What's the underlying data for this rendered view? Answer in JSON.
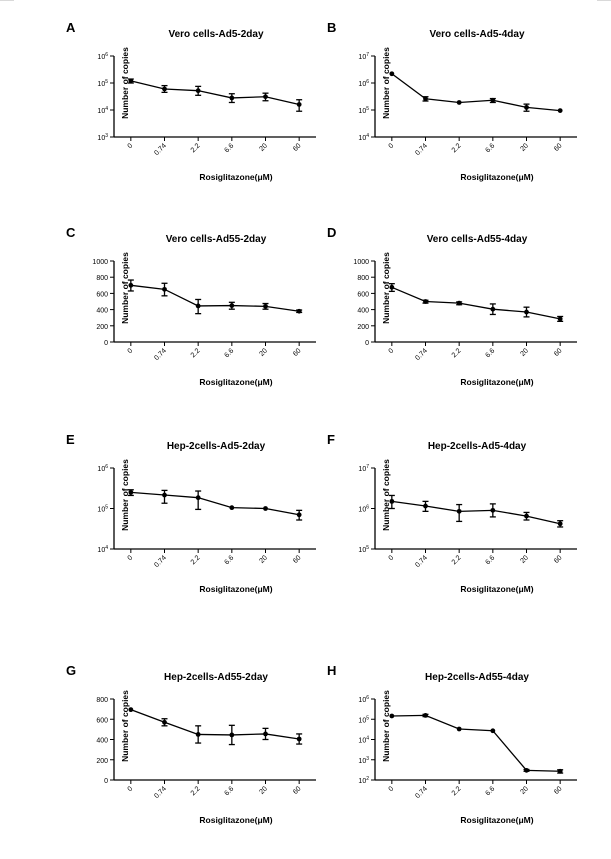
{
  "chart_data": [
    {
      "panel": "A",
      "type": "line",
      "title": "Vero cells-Ad5-2day",
      "xlabel": "Rosiglitazone(μM)",
      "ylabel": "Number of copies",
      "yscale": "log",
      "ylim": [
        1000,
        1000000
      ],
      "yticks": [
        {
          "v": 1000,
          "base": "10",
          "exp": "3"
        },
        {
          "v": 10000,
          "base": "10",
          "exp": "4"
        },
        {
          "v": 100000,
          "base": "10",
          "exp": "5"
        },
        {
          "v": 1000000,
          "base": "10",
          "exp": "6"
        }
      ],
      "categories": [
        "0",
        "0.74",
        "2.2",
        "6.6",
        "20",
        "60"
      ],
      "values": [
        120000,
        60000,
        52000,
        28000,
        31000,
        16000
      ],
      "err_low": [
        100000,
        45000,
        35000,
        19000,
        22000,
        9000
      ],
      "err_high": [
        140000,
        80000,
        75000,
        40000,
        42000,
        24000
      ]
    },
    {
      "panel": "B",
      "type": "line",
      "title": "Vero cells-Ad5-4day",
      "xlabel": "Rosiglitazone(μM)",
      "ylabel": "Number of copies",
      "yscale": "log",
      "ylim": [
        10000,
        10000000
      ],
      "yticks": [
        {
          "v": 10000,
          "base": "10",
          "exp": "4"
        },
        {
          "v": 100000,
          "base": "10",
          "exp": "5"
        },
        {
          "v": 1000000,
          "base": "10",
          "exp": "6"
        },
        {
          "v": 10000000,
          "base": "10",
          "exp": "7"
        }
      ],
      "categories": [
        "0",
        "0.74",
        "2.2",
        "6.6",
        "20",
        "60"
      ],
      "values": [
        2200000,
        260000,
        190000,
        230000,
        125000,
        95000
      ],
      "err_low": [
        2200000,
        215000,
        190000,
        190000,
        90000,
        95000
      ],
      "err_high": [
        2200000,
        310000,
        190000,
        265000,
        165000,
        95000
      ]
    },
    {
      "panel": "C",
      "type": "line",
      "title": "Vero cells-Ad55-2day",
      "xlabel": "Rosiglitazone(μM)",
      "ylabel": "Number of copies",
      "yscale": "linear",
      "ylim": [
        0,
        1000
      ],
      "yticks": [
        {
          "v": 0,
          "t": "0"
        },
        {
          "v": 200,
          "t": "200"
        },
        {
          "v": 400,
          "t": "400"
        },
        {
          "v": 600,
          "t": "600"
        },
        {
          "v": 800,
          "t": "800"
        },
        {
          "v": 1000,
          "t": "1000"
        }
      ],
      "categories": [
        "0",
        "0.74",
        "2.2",
        "6.6",
        "20",
        "60"
      ],
      "values": [
        700,
        650,
        445,
        450,
        440,
        380
      ],
      "err_low": [
        630,
        570,
        350,
        405,
        405,
        365
      ],
      "err_high": [
        765,
        725,
        525,
        490,
        475,
        395
      ]
    },
    {
      "panel": "D",
      "type": "line",
      "title": "Vero cells-Ad55-4day",
      "xlabel": "Rosiglitazone(μM)",
      "ylabel": "Number of copies",
      "yscale": "linear",
      "ylim": [
        0,
        1000
      ],
      "yticks": [
        {
          "v": 0,
          "t": "0"
        },
        {
          "v": 200,
          "t": "200"
        },
        {
          "v": 400,
          "t": "400"
        },
        {
          "v": 600,
          "t": "600"
        },
        {
          "v": 800,
          "t": "800"
        },
        {
          "v": 1000,
          "t": "1000"
        }
      ],
      "categories": [
        "0",
        "0.74",
        "2.2",
        "6.6",
        "20",
        "60"
      ],
      "values": [
        675,
        500,
        480,
        405,
        370,
        285
      ],
      "err_low": [
        625,
        480,
        460,
        340,
        310,
        255
      ],
      "err_high": [
        720,
        515,
        495,
        470,
        430,
        315
      ]
    },
    {
      "panel": "E",
      "type": "line",
      "title": "Hep-2cells-Ad5-2day",
      "xlabel": "Rosiglitazone(μM)",
      "ylabel": "Number of copies",
      "yscale": "log",
      "ylim": [
        10000,
        1000000
      ],
      "yticks": [
        {
          "v": 10000,
          "base": "10",
          "exp": "4"
        },
        {
          "v": 100000,
          "base": "10",
          "exp": "5"
        },
        {
          "v": 1000000,
          "base": "10",
          "exp": "6"
        }
      ],
      "categories": [
        "0",
        "0.74",
        "2.2",
        "6.6",
        "20",
        "60"
      ],
      "values": [
        250000,
        215000,
        185000,
        105000,
        100000,
        70000
      ],
      "err_low": [
        210000,
        135000,
        95000,
        105000,
        100000,
        52000
      ],
      "err_high": [
        290000,
        280000,
        270000,
        105000,
        100000,
        90000
      ]
    },
    {
      "panel": "F",
      "type": "line",
      "title": "Hep-2cells-Ad5-4day",
      "xlabel": "Rosiglitazone(μM)",
      "ylabel": "Number of copies",
      "yscale": "log",
      "ylim": [
        100000,
        10000000
      ],
      "yticks": [
        {
          "v": 100000,
          "base": "10",
          "exp": "5"
        },
        {
          "v": 1000000,
          "base": "10",
          "exp": "6"
        },
        {
          "v": 10000000,
          "base": "10",
          "exp": "7"
        }
      ],
      "categories": [
        "0",
        "0.74",
        "2.2",
        "6.6",
        "20",
        "60"
      ],
      "values": [
        1500000,
        1150000,
        850000,
        900000,
        650000,
        420000
      ],
      "err_low": [
        1000000,
        850000,
        480000,
        620000,
        520000,
        350000
      ],
      "err_high": [
        2100000,
        1500000,
        1250000,
        1300000,
        800000,
        500000
      ]
    },
    {
      "panel": "G",
      "type": "line",
      "title": "Hep-2cells-Ad55-2day",
      "xlabel": "Rosiglitazone(μM)",
      "ylabel": "Number of copies",
      "yscale": "linear",
      "ylim": [
        0,
        800
      ],
      "yticks": [
        {
          "v": 0,
          "t": "0"
        },
        {
          "v": 200,
          "t": "200"
        },
        {
          "v": 400,
          "t": "400"
        },
        {
          "v": 600,
          "t": "600"
        },
        {
          "v": 800,
          "t": "800"
        }
      ],
      "categories": [
        "0",
        "0.74",
        "2.2",
        "6.6",
        "20",
        "60"
      ],
      "values": [
        695,
        570,
        450,
        445,
        455,
        405
      ],
      "err_low": [
        695,
        535,
        365,
        350,
        400,
        355
      ],
      "err_high": [
        695,
        605,
        535,
        540,
        510,
        455
      ]
    },
    {
      "panel": "H",
      "type": "line",
      "title": "Hep-2cells-Ad55-4day",
      "xlabel": "Rosiglitazone(μM)",
      "ylabel": "Number of copies",
      "yscale": "log",
      "ylim": [
        100,
        1000000
      ],
      "yticks": [
        {
          "v": 100,
          "base": "10",
          "exp": "2"
        },
        {
          "v": 1000,
          "base": "10",
          "exp": "3"
        },
        {
          "v": 10000,
          "base": "10",
          "exp": "4"
        },
        {
          "v": 100000,
          "base": "10",
          "exp": "5"
        },
        {
          "v": 1000000,
          "base": "10",
          "exp": "6"
        }
      ],
      "categories": [
        "0",
        "0.74",
        "2.2",
        "6.6",
        "20",
        "60"
      ],
      "values": [
        145000,
        155000,
        33000,
        27000,
        300,
        270
      ],
      "err_low": [
        145000,
        135000,
        33000,
        27000,
        270,
        220
      ],
      "err_high": [
        145000,
        175000,
        33000,
        27000,
        330,
        320
      ]
    }
  ]
}
